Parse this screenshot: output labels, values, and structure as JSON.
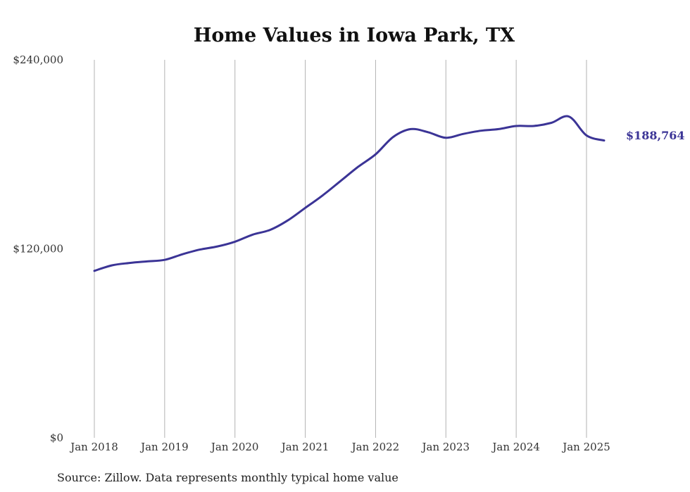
{
  "colors": {
    "series": "#3b3496",
    "grid": "#b3b3b3",
    "text": "#333333"
  },
  "chart_data": {
    "type": "line",
    "title": "Home Values in Iowa Park, TX",
    "xlabel": "",
    "ylabel": "",
    "ylim": [
      0,
      240000
    ],
    "y_ticks": [
      0,
      120000,
      240000
    ],
    "y_tick_labels": [
      "$0",
      "$120,000",
      "$240,000"
    ],
    "x_ticks": [
      "2018-01",
      "2019-01",
      "2020-01",
      "2021-01",
      "2022-01",
      "2023-01",
      "2024-01",
      "2025-01"
    ],
    "x_tick_labels": [
      "Jan 2018",
      "Jan 2019",
      "Jan 2020",
      "Jan 2021",
      "Jan 2022",
      "Jan 2023",
      "Jan 2024",
      "Jan 2025"
    ],
    "grid": "vertical",
    "end_label": "$188,764",
    "source": "Source: Zillow. Data represents monthly typical home value",
    "series": [
      {
        "x": [
          "2018-01",
          "2018-04",
          "2018-07",
          "2018-10",
          "2019-01",
          "2019-04",
          "2019-07",
          "2019-10",
          "2020-01",
          "2020-04",
          "2020-07",
          "2020-10",
          "2021-01",
          "2021-04",
          "2021-07",
          "2021-10",
          "2022-01",
          "2022-04",
          "2022-07",
          "2022-10",
          "2023-01",
          "2023-04",
          "2023-07",
          "2023-10",
          "2024-01",
          "2024-04",
          "2024-07",
          "2024-10",
          "2025-01",
          "2025-04"
        ],
        "values": [
          106000,
          109500,
          111000,
          112000,
          113000,
          116500,
          119500,
          121500,
          124500,
          129000,
          132000,
          138000,
          146000,
          154000,
          163000,
          172000,
          180000,
          191000,
          196000,
          194000,
          190500,
          193000,
          195000,
          196000,
          198000,
          198000,
          200000,
          204000,
          192000,
          188764
        ]
      }
    ]
  }
}
